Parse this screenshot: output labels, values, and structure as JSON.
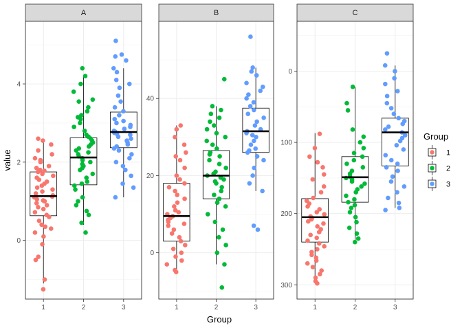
{
  "chart_data": {
    "type": "boxplot-jitter",
    "xlabel": "Group",
    "ylabel": "value",
    "legend": {
      "title": "Group",
      "position": "right",
      "labels": [
        "1",
        "2",
        "3"
      ]
    },
    "colors": {
      "1": "#F8766D",
      "2": "#00BA38",
      "3": "#619CFF"
    },
    "facets": [
      {
        "label": "A",
        "reverse": false,
        "ylim": [
          -1.5,
          5.6
        ],
        "yticks": [
          0,
          2,
          4
        ],
        "groups": [
          {
            "group": "1",
            "box": {
              "lower": 0.63,
              "q1": 0.63,
              "median": 1.13,
              "q3": 1.75,
              "whisker_low": -1.1,
              "whisker_high": 2.6
            },
            "points": [
              -1.25,
              -1.0,
              -0.5,
              -0.42,
              -0.1,
              0.1,
              0.2,
              0.3,
              0.35,
              0.4,
              0.5,
              0.6,
              0.65,
              0.72,
              0.8,
              0.85,
              0.9,
              0.95,
              1.0,
              1.02,
              1.05,
              1.1,
              1.12,
              1.15,
              1.2,
              1.25,
              1.3,
              1.35,
              1.4,
              1.45,
              1.5,
              1.55,
              1.6,
              1.65,
              1.7,
              1.75,
              1.78,
              1.8,
              1.85,
              1.9,
              2.0,
              2.05,
              2.1,
              2.2,
              2.3,
              2.45,
              2.55,
              2.6
            ]
          },
          {
            "group": "2",
            "box": {
              "q1": 1.42,
              "median": 2.12,
              "q3": 2.62,
              "whisker_low": 0.4,
              "whisker_high": 4.2
            },
            "points": [
              0.2,
              0.45,
              0.65,
              0.75,
              0.9,
              1.0,
              1.1,
              1.3,
              1.4,
              1.45,
              1.5,
              1.6,
              1.7,
              1.8,
              1.85,
              1.9,
              1.95,
              2.0,
              2.05,
              2.1,
              2.15,
              2.2,
              2.25,
              2.3,
              2.35,
              2.4,
              2.45,
              2.5,
              2.55,
              2.6,
              2.65,
              2.7,
              2.8,
              2.9,
              3.0,
              3.1,
              3.15,
              3.2,
              3.3,
              3.4,
              3.55,
              3.6,
              3.8,
              4.0,
              4.2,
              4.4
            ]
          },
          {
            "group": "3",
            "box": {
              "q1": 2.37,
              "median": 2.77,
              "q3": 3.28,
              "whisker_low": 1.1,
              "whisker_high": 4.4
            },
            "points": [
              1.1,
              1.35,
              1.45,
              1.65,
              1.8,
              1.9,
              2.0,
              2.1,
              2.2,
              2.3,
              2.35,
              2.4,
              2.45,
              2.5,
              2.55,
              2.6,
              2.65,
              2.7,
              2.72,
              2.75,
              2.78,
              2.8,
              2.85,
              2.9,
              2.95,
              3.0,
              3.05,
              3.1,
              3.2,
              3.3,
              3.4,
              3.55,
              3.7,
              3.9,
              4.0,
              4.1,
              4.3,
              4.4,
              4.6,
              4.7,
              4.75,
              5.1
            ]
          }
        ]
      },
      {
        "label": "B",
        "reverse": false,
        "ylim": [
          -12,
          60
        ],
        "yticks": [
          0,
          20,
          40
        ],
        "groups": [
          {
            "group": "1",
            "box": {
              "q1": 3,
              "median": 9.5,
              "q3": 18,
              "whisker_low": -5,
              "whisker_high": 33
            },
            "points": [
              -5,
              -4.5,
              -3,
              -2,
              -1,
              0,
              1,
              2,
              3,
              4,
              5,
              6,
              7,
              7.5,
              8,
              8.5,
              9,
              9.5,
              10,
              10.5,
              11,
              12,
              13,
              14,
              15,
              16,
              17,
              18,
              19,
              20,
              22,
              24,
              25,
              26,
              28,
              30,
              32,
              33
            ]
          },
          {
            "group": "2",
            "box": {
              "q1": 14,
              "median": 20,
              "q3": 26.5,
              "whisker_low": -3,
              "whisker_high": 38
            },
            "points": [
              -9,
              -3,
              0,
              2,
              4,
              6,
              8,
              10,
              12,
              13,
              14,
              15,
              16,
              17,
              18,
              18.5,
              19,
              19.5,
              20,
              20.5,
              21,
              22,
              23,
              24,
              25,
              25.5,
              26,
              27,
              28,
              29,
              30,
              31,
              32,
              33,
              34,
              35,
              36,
              37,
              38,
              45
            ]
          },
          {
            "group": "3",
            "box": {
              "q1": 26,
              "median": 31.5,
              "q3": 37.5,
              "whisker_low": 16,
              "whisker_high": 48
            },
            "points": [
              6,
              7,
              16,
              18,
              20,
              22,
              24,
              25,
              26,
              26.5,
              27,
              28,
              29,
              30,
              30.5,
              31,
              31.5,
              32,
              33,
              34,
              35,
              36,
              37,
              38,
              39,
              40,
              41,
              42,
              43,
              44,
              46,
              47,
              48,
              56
            ]
          }
        ]
      },
      {
        "label": "C",
        "reverse": true,
        "ylim": [
          -70,
          320
        ],
        "yticks": [
          0,
          100,
          200,
          300
        ],
        "groups": [
          {
            "group": "1",
            "box": {
              "q1": 179,
              "median": 205,
              "q3": 240,
              "whisker_low": 87,
              "whisker_high": 298
            },
            "points": [
              88,
              108,
              120,
              128,
              135,
              145,
              152,
              162,
              170,
              178,
              182,
              186,
              190,
              194,
              198,
              201,
              204,
              206,
              208,
              211,
              214,
              218,
              222,
              226,
              230,
              234,
              238,
              242,
              246,
              250,
              254,
              258,
              262,
              266,
              270,
              275,
              280,
              285,
              290,
              295,
              298
            ]
          },
          {
            "group": "2",
            "box": {
              "q1": 120,
              "median": 149,
              "q3": 184,
              "whisker_low": 22,
              "whisker_high": 238
            },
            "points": [
              22,
              45,
              55,
              82,
              92,
              100,
              108,
              115,
              120,
              125,
              130,
              135,
              140,
              144,
              148,
              150,
              152,
              155,
              158,
              162,
              166,
              170,
              175,
              180,
              184,
              188,
              192,
              198,
              205,
              212,
              220,
              228,
              235,
              240
            ]
          },
          {
            "group": "3",
            "box": {
              "q1": 66,
              "median": 86,
              "q3": 133,
              "whisker_low": -8,
              "whisker_high": 192
            },
            "points": [
              -25,
              -8,
              0,
              10,
              18,
              28,
              35,
              45,
              52,
              60,
              66,
              70,
              74,
              78,
              82,
              86,
              90,
              94,
              98,
              104,
              110,
              118,
              125,
              130,
              135,
              140,
              148,
              155,
              162,
              170,
              178,
              185,
              192,
              195
            ]
          }
        ]
      }
    ]
  }
}
